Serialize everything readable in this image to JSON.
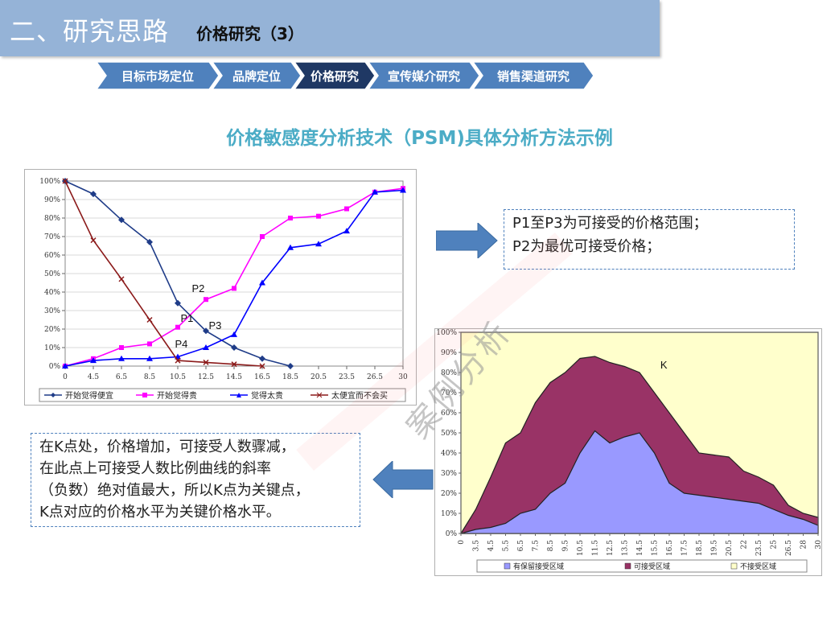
{
  "header": {
    "section_title": "二、研究思路",
    "subtitle": "价格研究（3）"
  },
  "breadcrumb": {
    "items": [
      {
        "label": "目标市场定位",
        "active": false
      },
      {
        "label": "品牌定位",
        "active": false
      },
      {
        "label": "价格研究",
        "active": true
      },
      {
        "label": "宣传媒介研究",
        "active": false
      },
      {
        "label": "销售渠道研究",
        "active": false
      }
    ]
  },
  "main": {
    "heading": "价格敏感度分析技术（PSM)具体分析方法示例"
  },
  "notes": {
    "right_line1": "P1至P3为可接受的价格范围；",
    "right_line2": "P2为最优可接受价格；",
    "left_line1": "在K点处，价格增加，可接受人数骤减，",
    "left_line2": "在此点上可接受人数比例曲线的斜率",
    "left_line3": "（负数）绝对值最大，所以K点为关键点，",
    "left_line4": "K点对应的价格水平为关键价格水平。"
  },
  "watermark": "案例分析",
  "colors": {
    "header_bg": "#95b3d7",
    "crumb_inactive": "#4f81bd",
    "crumb_active": "#1f3864",
    "heading": "#4bacc6",
    "arrow": "#4f81bd"
  },
  "chart_data": [
    {
      "type": "line",
      "x": [
        "0",
        "4.5",
        "6.5",
        "8.5",
        "10.5",
        "12.5",
        "14.5",
        "16.5",
        "18.5",
        "20.5",
        "23.5",
        "26.5",
        "30"
      ],
      "ylim": [
        0,
        100
      ],
      "yticks": [
        "0%",
        "10%",
        "20%",
        "30%",
        "40%",
        "50%",
        "60%",
        "70%",
        "80%",
        "90%",
        "100%"
      ],
      "series": [
        {
          "name": "开始觉得便宜",
          "color": "#1f3c88",
          "marker": "diamond",
          "values": [
            100,
            93,
            79,
            67,
            34,
            19,
            10,
            4,
            0,
            null,
            null,
            null,
            null
          ]
        },
        {
          "name": "开始觉得贵",
          "color": "#ff00ff",
          "marker": "square",
          "values": [
            0,
            4,
            10,
            12,
            21,
            36,
            42,
            70,
            80,
            81,
            85,
            94,
            96
          ]
        },
        {
          "name": "觉得太贵",
          "color": "#0000ff",
          "marker": "triangle",
          "values": [
            0,
            3,
            4,
            4,
            5,
            10,
            17,
            45,
            64,
            66,
            73,
            94,
            95
          ]
        },
        {
          "name": "太便宜而不会买",
          "color": "#8b1a1a",
          "marker": "x",
          "values": [
            100,
            68,
            47,
            25,
            3,
            2,
            1,
            0,
            null,
            null,
            null,
            null,
            null
          ]
        }
      ],
      "annotations": [
        "P1",
        "P2",
        "P3",
        "P4"
      ]
    },
    {
      "type": "area",
      "x": [
        "0",
        "3.5",
        "4.5",
        "5.5",
        "6.5",
        "7.5",
        "8.5",
        "9.5",
        "10.5",
        "11.5",
        "12.5",
        "13.5",
        "14.5",
        "15.5",
        "16.5",
        "17.5",
        "18.5",
        "19.5",
        "20.5",
        "22",
        "23.5",
        "25",
        "26.5",
        "28",
        "30"
      ],
      "ylim": [
        0,
        100
      ],
      "yticks": [
        "0%",
        "10%",
        "20%",
        "30%",
        "40%",
        "50%",
        "60%",
        "70%",
        "80%",
        "90%",
        "100%"
      ],
      "series": [
        {
          "name": "有保留接受区域",
          "color": "#9999ff",
          "values": [
            0,
            2,
            3,
            5,
            10,
            12,
            20,
            25,
            40,
            51,
            45,
            48,
            50,
            40,
            25,
            20,
            19,
            18,
            17,
            16,
            15,
            12,
            9,
            7,
            4
          ]
        },
        {
          "name": "可接受区域",
          "color": "#993366",
          "values": [
            0,
            12,
            28,
            45,
            50,
            65,
            75,
            80,
            87,
            88,
            85,
            83,
            80,
            70,
            60,
            50,
            40,
            39,
            38,
            31,
            28,
            24,
            14,
            10,
            8
          ]
        },
        {
          "name": "不接受区域",
          "color": "#ffffcc",
          "values": [
            100,
            100,
            100,
            100,
            100,
            100,
            100,
            100,
            100,
            100,
            100,
            100,
            100,
            100,
            100,
            100,
            100,
            100,
            100,
            100,
            100,
            100,
            100,
            100,
            100
          ]
        }
      ],
      "annotations": [
        "K"
      ]
    }
  ]
}
